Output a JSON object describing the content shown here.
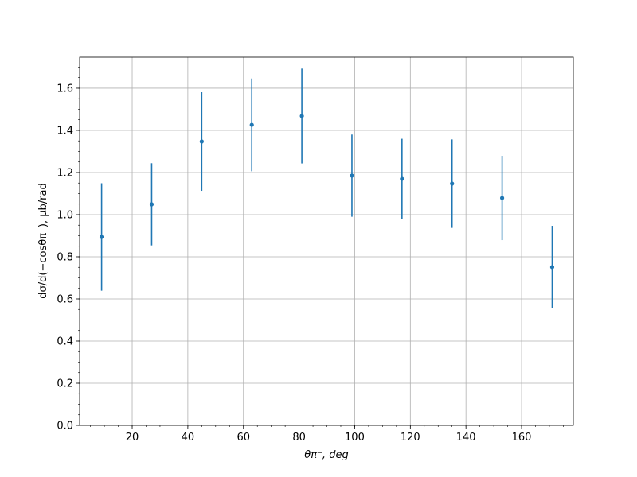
{
  "chart_data": {
    "type": "errorbar",
    "x_label": "θπ⁻, deg",
    "y_label": "dσ/d(−cosθπ⁻), μb/rad",
    "x": [
      9,
      27,
      45,
      63,
      81,
      99,
      117,
      135,
      153,
      171
    ],
    "series": [
      {
        "color": "#1f77b4",
        "values": [
          0.894,
          1.049,
          1.347,
          1.426,
          1.468,
          1.185,
          1.17,
          1.147,
          1.079,
          0.751
        ],
        "errors": [
          0.255,
          0.195,
          0.234,
          0.22,
          0.225,
          0.195,
          0.19,
          0.21,
          0.2,
          0.196
        ]
      }
    ],
    "xlim": [
      1.1,
      178.6
    ],
    "ylim": [
      0,
      1.747
    ],
    "xticks": [
      20,
      40,
      60,
      80,
      100,
      120,
      140,
      160
    ],
    "yticks": [
      {
        "value": 0,
        "label": "0.0"
      },
      0.2,
      0.4,
      0.6,
      0.8,
      {
        "value": 1,
        "label": "1.0"
      },
      1.2,
      1.4,
      1.6
    ],
    "grid": true,
    "minor_ticks": true
  }
}
